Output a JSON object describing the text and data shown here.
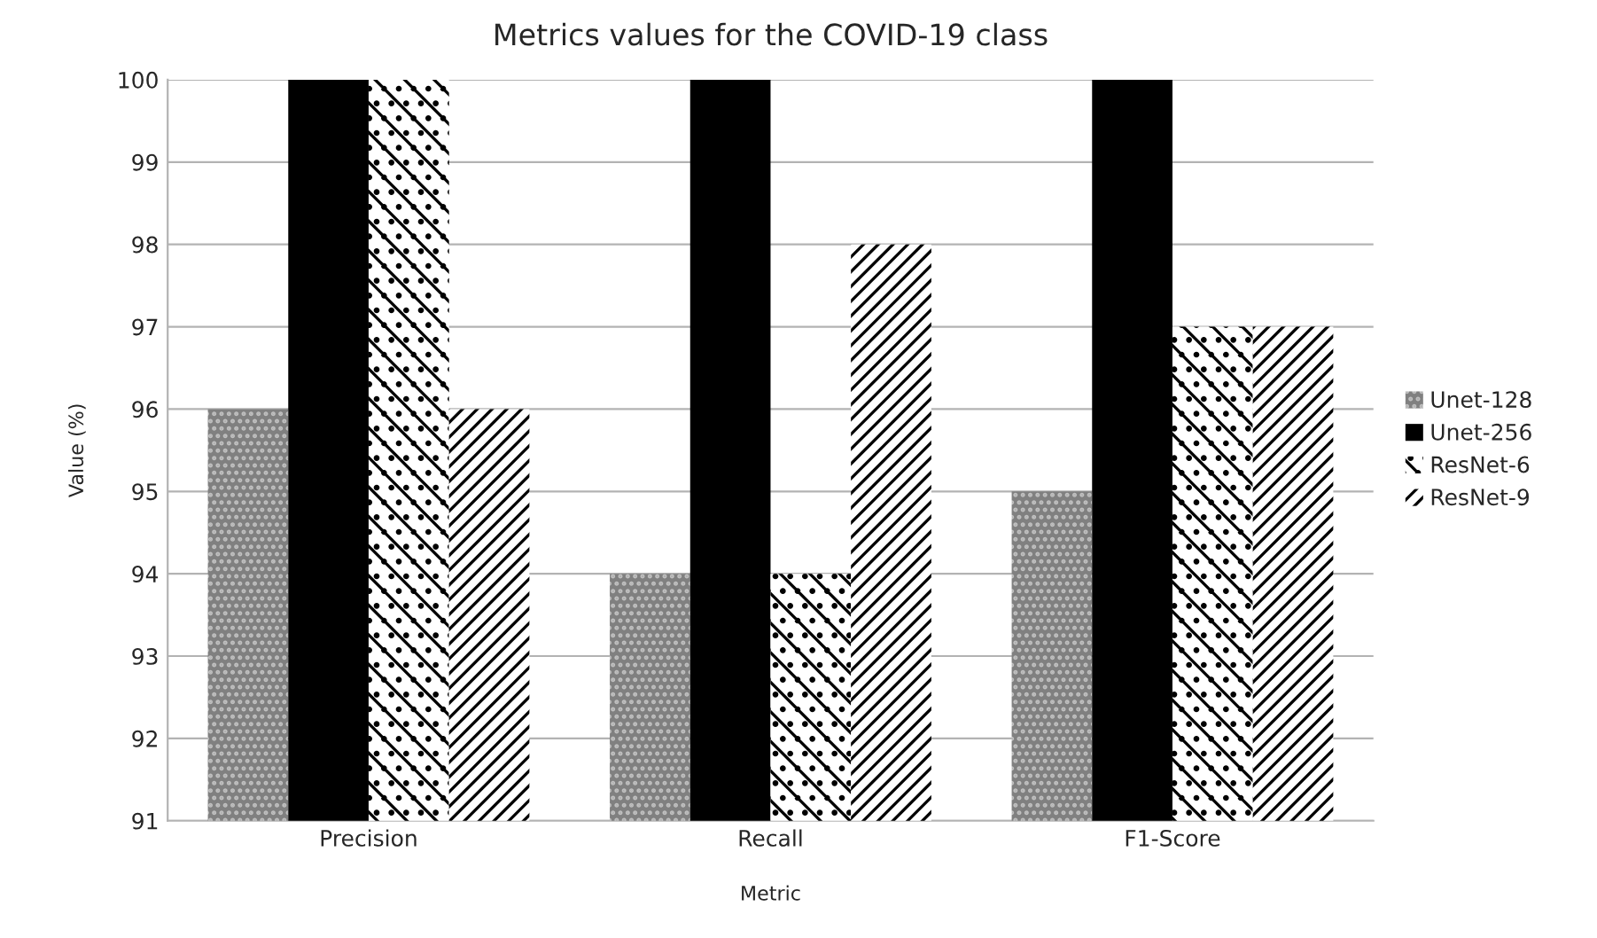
{
  "chart_data": {
    "type": "bar",
    "title": "Metrics values for the COVID-19 class",
    "xlabel": "Metric",
    "ylabel": "Value (%)",
    "categories": [
      "Precision",
      "Recall",
      "F1-Score"
    ],
    "series": [
      {
        "name": "Unet-128",
        "color": "#808080",
        "values": [
          96,
          94,
          95
        ]
      },
      {
        "name": "Unet-256",
        "color": "#000000",
        "values": [
          100,
          100,
          100
        ]
      },
      {
        "name": "ResNet-6",
        "color": "#ffffff",
        "values": [
          100,
          94,
          97
        ]
      },
      {
        "name": "ResNet-9",
        "color": "#ffffff",
        "values": [
          96,
          98,
          97
        ]
      }
    ],
    "ylim": [
      91,
      100
    ],
    "yticks": [
      91,
      92,
      93,
      94,
      95,
      96,
      97,
      98,
      99,
      100
    ],
    "grid": "y",
    "legend": "right"
  }
}
